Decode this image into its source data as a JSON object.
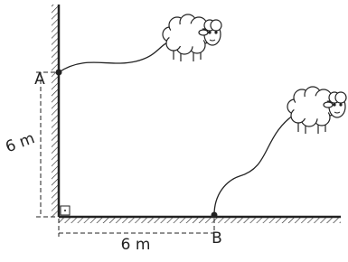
{
  "labels": {
    "point_a": "A",
    "point_b": "B",
    "vertical_distance": "6 m",
    "horizontal_distance": "6 m"
  }
}
